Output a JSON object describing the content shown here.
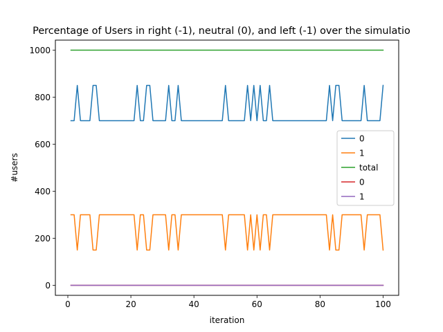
{
  "chart_data": {
    "type": "line",
    "title": "Percentage of Users in right (-1), neutral (0), and left (-1) over the simulatio",
    "xlabel": "iteration",
    "ylabel": "#users",
    "xlim": [
      -3.95,
      104.95
    ],
    "ylim": [
      -42.5,
      1042.5
    ],
    "xticks": [
      0,
      20,
      40,
      60,
      80,
      100
    ],
    "yticks": [
      0,
      200,
      400,
      600,
      800,
      1000
    ],
    "grid": false,
    "legend_position": "center-right",
    "x": [
      1,
      2,
      3,
      4,
      5,
      6,
      7,
      8,
      9,
      10,
      11,
      12,
      13,
      14,
      15,
      16,
      17,
      18,
      19,
      20,
      21,
      22,
      23,
      24,
      25,
      26,
      27,
      28,
      29,
      30,
      31,
      32,
      33,
      34,
      35,
      36,
      37,
      38,
      39,
      40,
      41,
      42,
      43,
      44,
      45,
      46,
      47,
      48,
      49,
      50,
      51,
      52,
      53,
      54,
      55,
      56,
      57,
      58,
      59,
      60,
      61,
      62,
      63,
      64,
      65,
      66,
      67,
      68,
      69,
      70,
      71,
      72,
      73,
      74,
      75,
      76,
      77,
      78,
      79,
      80,
      81,
      82,
      83,
      84,
      85,
      86,
      87,
      88,
      89,
      90,
      91,
      92,
      93,
      94,
      95,
      96,
      97,
      98,
      99,
      100
    ],
    "series": [
      {
        "name": "0",
        "color": "#1f77b4",
        "values": [
          700,
          700,
          850,
          700,
          700,
          700,
          700,
          850,
          850,
          700,
          700,
          700,
          700,
          700,
          700,
          700,
          700,
          700,
          700,
          700,
          700,
          850,
          700,
          700,
          850,
          850,
          700,
          700,
          700,
          700,
          700,
          850,
          700,
          700,
          850,
          700,
          700,
          700,
          700,
          700,
          700,
          700,
          700,
          700,
          700,
          700,
          700,
          700,
          700,
          850,
          700,
          700,
          700,
          700,
          700,
          700,
          850,
          700,
          850,
          700,
          850,
          700,
          700,
          850,
          700,
          700,
          700,
          700,
          700,
          700,
          700,
          700,
          700,
          700,
          700,
          700,
          700,
          700,
          700,
          700,
          700,
          700,
          850,
          700,
          850,
          850,
          700,
          700,
          700,
          700,
          700,
          700,
          700,
          850,
          700,
          700,
          700,
          700,
          700,
          850
        ]
      },
      {
        "name": "1",
        "color": "#ff7f0e",
        "values": [
          300,
          300,
          150,
          300,
          300,
          300,
          300,
          150,
          150,
          300,
          300,
          300,
          300,
          300,
          300,
          300,
          300,
          300,
          300,
          300,
          300,
          150,
          300,
          300,
          150,
          150,
          300,
          300,
          300,
          300,
          300,
          150,
          300,
          300,
          150,
          300,
          300,
          300,
          300,
          300,
          300,
          300,
          300,
          300,
          300,
          300,
          300,
          300,
          300,
          150,
          300,
          300,
          300,
          300,
          300,
          300,
          150,
          300,
          150,
          300,
          150,
          300,
          300,
          150,
          300,
          300,
          300,
          300,
          300,
          300,
          300,
          300,
          300,
          300,
          300,
          300,
          300,
          300,
          300,
          300,
          300,
          300,
          150,
          300,
          150,
          150,
          300,
          300,
          300,
          300,
          300,
          300,
          300,
          150,
          300,
          300,
          300,
          300,
          300,
          150
        ]
      },
      {
        "name": "total",
        "color": "#2ca02c",
        "values": [
          1000,
          1000,
          1000,
          1000,
          1000,
          1000,
          1000,
          1000,
          1000,
          1000,
          1000,
          1000,
          1000,
          1000,
          1000,
          1000,
          1000,
          1000,
          1000,
          1000,
          1000,
          1000,
          1000,
          1000,
          1000,
          1000,
          1000,
          1000,
          1000,
          1000,
          1000,
          1000,
          1000,
          1000,
          1000,
          1000,
          1000,
          1000,
          1000,
          1000,
          1000,
          1000,
          1000,
          1000,
          1000,
          1000,
          1000,
          1000,
          1000,
          1000,
          1000,
          1000,
          1000,
          1000,
          1000,
          1000,
          1000,
          1000,
          1000,
          1000,
          1000,
          1000,
          1000,
          1000,
          1000,
          1000,
          1000,
          1000,
          1000,
          1000,
          1000,
          1000,
          1000,
          1000,
          1000,
          1000,
          1000,
          1000,
          1000,
          1000,
          1000,
          1000,
          1000,
          1000,
          1000,
          1000,
          1000,
          1000,
          1000,
          1000,
          1000,
          1000,
          1000,
          1000,
          1000,
          1000,
          1000,
          1000,
          1000,
          1000
        ]
      },
      {
        "name": "0",
        "color": "#d62728",
        "values": [
          0,
          0,
          0,
          0,
          0,
          0,
          0,
          0,
          0,
          0,
          0,
          0,
          0,
          0,
          0,
          0,
          0,
          0,
          0,
          0,
          0,
          0,
          0,
          0,
          0,
          0,
          0,
          0,
          0,
          0,
          0,
          0,
          0,
          0,
          0,
          0,
          0,
          0,
          0,
          0,
          0,
          0,
          0,
          0,
          0,
          0,
          0,
          0,
          0,
          0,
          0,
          0,
          0,
          0,
          0,
          0,
          0,
          0,
          0,
          0,
          0,
          0,
          0,
          0,
          0,
          0,
          0,
          0,
          0,
          0,
          0,
          0,
          0,
          0,
          0,
          0,
          0,
          0,
          0,
          0,
          0,
          0,
          0,
          0,
          0,
          0,
          0,
          0,
          0,
          0,
          0,
          0,
          0,
          0,
          0,
          0,
          0,
          0,
          0,
          0
        ]
      },
      {
        "name": "1",
        "color": "#9467bd",
        "values": [
          0,
          0,
          0,
          0,
          0,
          0,
          0,
          0,
          0,
          0,
          0,
          0,
          0,
          0,
          0,
          0,
          0,
          0,
          0,
          0,
          0,
          0,
          0,
          0,
          0,
          0,
          0,
          0,
          0,
          0,
          0,
          0,
          0,
          0,
          0,
          0,
          0,
          0,
          0,
          0,
          0,
          0,
          0,
          0,
          0,
          0,
          0,
          0,
          0,
          0,
          0,
          0,
          0,
          0,
          0,
          0,
          0,
          0,
          0,
          0,
          0,
          0,
          0,
          0,
          0,
          0,
          0,
          0,
          0,
          0,
          0,
          0,
          0,
          0,
          0,
          0,
          0,
          0,
          0,
          0,
          0,
          0,
          0,
          0,
          0,
          0,
          0,
          0,
          0,
          0,
          0,
          0,
          0,
          0,
          0,
          0,
          0,
          0,
          0,
          0
        ]
      }
    ]
  }
}
